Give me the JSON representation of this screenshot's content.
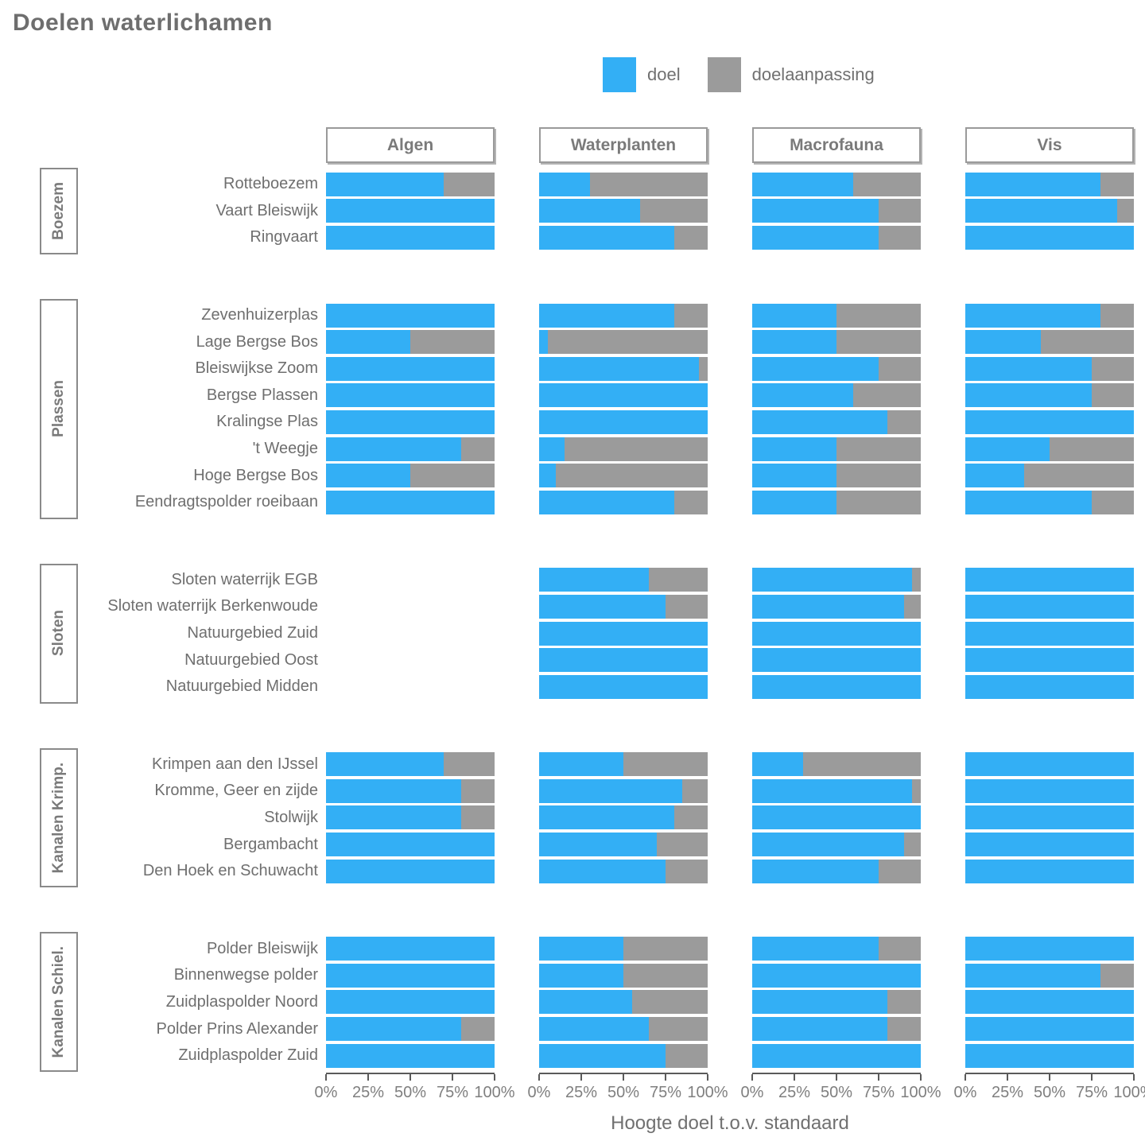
{
  "title": "Doelen waterlichamen",
  "legend": {
    "items": [
      {
        "label": "doel",
        "color": "#33AFF5"
      },
      {
        "label": "doelaanpassing",
        "color": "#9B9B9B"
      }
    ]
  },
  "facets": [
    "Algen",
    "Waterplanten",
    "Macrofauna",
    "Vis"
  ],
  "axis": {
    "ticks": [
      "0%",
      "25%",
      "50%",
      "75%",
      "100%"
    ],
    "tick_positions": [
      0,
      25,
      50,
      75,
      100
    ],
    "caption": "Hoogte doel t.o.v. standaard"
  },
  "chart_data": {
    "type": "bar",
    "orientation": "horizontal-stacked",
    "title": "Doelen waterlichamen",
    "xlabel": "Hoogte doel t.o.v. standaard",
    "xlim": [
      0,
      100
    ],
    "x_ticks": [
      "0%",
      "25%",
      "50%",
      "75%",
      "100%"
    ],
    "stack_total": 100,
    "series": [
      "doel",
      "doelaanpassing"
    ],
    "series_colors": [
      "#33AFF5",
      "#9B9B9B"
    ],
    "facet_columns": [
      "Algen",
      "Waterplanten",
      "Macrofauna",
      "Vis"
    ],
    "note": "values are the blue 'doel' percentage per facet; 'doelaanpassing' fills the remainder to 100; null means no bar shown",
    "groups": [
      {
        "name": "Boezem",
        "rows": [
          {
            "label": "Rotteboezem",
            "doel": [
              70,
              30,
              60,
              80
            ]
          },
          {
            "label": "Vaart Bleiswijk",
            "doel": [
              100,
              60,
              75,
              90
            ]
          },
          {
            "label": "Ringvaart",
            "doel": [
              100,
              80,
              75,
              100
            ]
          }
        ]
      },
      {
        "name": "Plassen",
        "rows": [
          {
            "label": "Zevenhuizerplas",
            "doel": [
              100,
              80,
              50,
              80
            ]
          },
          {
            "label": "Lage Bergse Bos",
            "doel": [
              50,
              5,
              50,
              45
            ]
          },
          {
            "label": "Bleiswijkse Zoom",
            "doel": [
              100,
              95,
              75,
              75
            ]
          },
          {
            "label": "Bergse Plassen",
            "doel": [
              100,
              100,
              60,
              75
            ]
          },
          {
            "label": "Kralingse Plas",
            "doel": [
              100,
              100,
              80,
              100
            ]
          },
          {
            "label": "'t Weegje",
            "doel": [
              80,
              15,
              50,
              50
            ]
          },
          {
            "label": "Hoge Bergse Bos",
            "doel": [
              50,
              10,
              50,
              35
            ]
          },
          {
            "label": "Eendragtspolder roeibaan",
            "doel": [
              100,
              80,
              50,
              75
            ]
          }
        ]
      },
      {
        "name": "Sloten",
        "rows": [
          {
            "label": "Sloten waterrijk EGB",
            "doel": [
              null,
              65,
              95,
              100
            ]
          },
          {
            "label": "Sloten waterrijk Berkenwoude",
            "doel": [
              null,
              75,
              90,
              100
            ]
          },
          {
            "label": "Natuurgebied Zuid",
            "doel": [
              null,
              100,
              100,
              100
            ]
          },
          {
            "label": "Natuurgebied Oost",
            "doel": [
              null,
              100,
              100,
              100
            ]
          },
          {
            "label": "Natuurgebied Midden",
            "doel": [
              null,
              100,
              100,
              100
            ]
          }
        ]
      },
      {
        "name": "Kanalen Krimp.",
        "rows": [
          {
            "label": "Krimpen aan den IJssel",
            "doel": [
              70,
              50,
              30,
              100
            ]
          },
          {
            "label": "Kromme, Geer en zijde",
            "doel": [
              80,
              85,
              95,
              100
            ]
          },
          {
            "label": "Stolwijk",
            "doel": [
              80,
              80,
              100,
              100
            ]
          },
          {
            "label": "Bergambacht",
            "doel": [
              100,
              70,
              90,
              100
            ]
          },
          {
            "label": "Den Hoek en Schuwacht",
            "doel": [
              100,
              75,
              75,
              100
            ]
          }
        ]
      },
      {
        "name": "Kanalen Schiel.",
        "rows": [
          {
            "label": "Polder Bleiswijk",
            "doel": [
              100,
              50,
              75,
              100
            ]
          },
          {
            "label": "Binnenwegse polder",
            "doel": [
              100,
              50,
              100,
              80
            ]
          },
          {
            "label": "Zuidplaspolder Noord",
            "doel": [
              100,
              55,
              80,
              100
            ]
          },
          {
            "label": "Polder Prins Alexander",
            "doel": [
              80,
              65,
              80,
              100
            ]
          },
          {
            "label": "Zuidplaspolder Zuid",
            "doel": [
              100,
              75,
              100,
              100
            ]
          }
        ]
      }
    ]
  }
}
